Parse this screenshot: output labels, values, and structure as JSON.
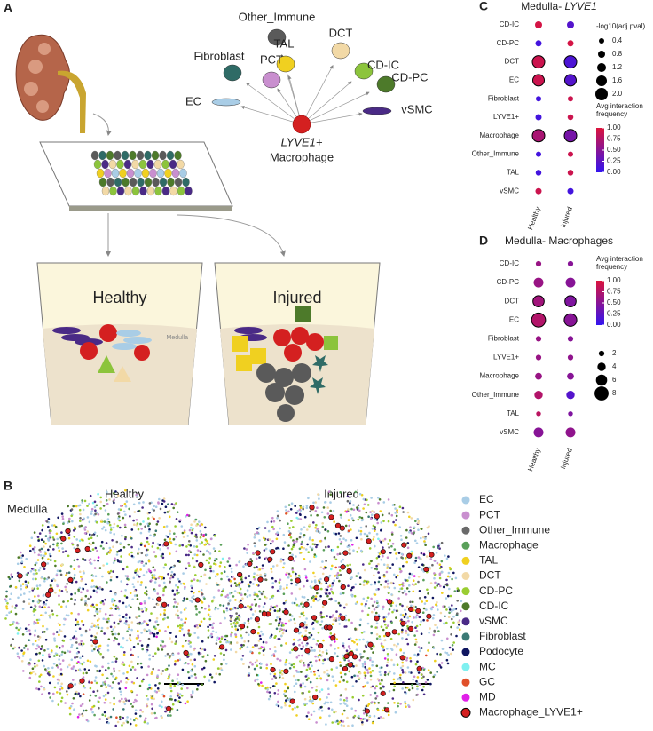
{
  "panel_labels": [
    "A",
    "B",
    "C",
    "D"
  ],
  "diagram": {
    "cells": [
      {
        "name": "Other_Immune",
        "color": "#5a5a5a"
      },
      {
        "name": "TAL",
        "color": "#f0d020"
      },
      {
        "name": "DCT",
        "color": "#f2d9a6"
      },
      {
        "name": "Fibroblast",
        "color": "#2f6b66"
      },
      {
        "name": "PCT",
        "color": "#c98fcf"
      },
      {
        "name": "CD-IC",
        "color": "#8cc43c"
      },
      {
        "name": "CD-PC",
        "color": "#4d7a2a"
      },
      {
        "name": "EC",
        "color": "#a9cde6"
      },
      {
        "name": "vSMC",
        "color": "#4a2a86"
      }
    ],
    "center_label": [
      "LYVE1+",
      "Macrophage"
    ],
    "conditions": [
      "Healthy",
      "Injured"
    ],
    "region": "Medulla"
  },
  "spatial": {
    "region": "Medulla",
    "titles": [
      "Healthy",
      "Injured"
    ],
    "legend": [
      {
        "name": "EC",
        "color": "#a9cde6"
      },
      {
        "name": "PCT",
        "color": "#c98fcf"
      },
      {
        "name": "Other_Immune",
        "color": "#6a6a6a"
      },
      {
        "name": "Macrophage",
        "color": "#5aa05a"
      },
      {
        "name": "TAL",
        "color": "#f0d020"
      },
      {
        "name": "DCT",
        "color": "#f2d9a6"
      },
      {
        "name": "CD-PC",
        "color": "#9acd32"
      },
      {
        "name": "CD-IC",
        "color": "#4d7a2a"
      },
      {
        "name": "vSMC",
        "color": "#4a2a86"
      },
      {
        "name": "Fibroblast",
        "color": "#3b7a76"
      },
      {
        "name": "Podocyte",
        "color": "#0f1660"
      },
      {
        "name": "MC",
        "color": "#7ff0f0"
      },
      {
        "name": "GC",
        "color": "#e0502a"
      },
      {
        "name": "MD",
        "color": "#e020e8"
      },
      {
        "name": "Macrophage_LYVE1+",
        "color": "#d42020"
      }
    ]
  },
  "chart_data": [
    {
      "type": "dot",
      "title": [
        "Medulla- ",
        "LYVE1"
      ],
      "categories": [
        "CD-IC",
        "CD-PC",
        "DCT",
        "EC",
        "Fibroblast",
        "LYVE1+",
        "Macrophage",
        "Other_Immune",
        "TAL",
        "vSMC"
      ],
      "series": [
        {
          "name": "Healthy",
          "values": [
            0.95,
            0.1,
            0.9,
            0.9,
            0.1,
            0.1,
            0.7,
            0.1,
            0.1,
            0.9
          ],
          "sizes": [
            0.8,
            0.6,
            2.0,
            1.8,
            0.4,
            0.6,
            2.0,
            0.4,
            0.5,
            0.6
          ]
        },
        {
          "name": "Injured",
          "values": [
            0.2,
            0.95,
            0.15,
            0.2,
            0.9,
            0.9,
            0.4,
            0.9,
            0.9,
            0.1
          ],
          "sizes": [
            0.8,
            0.6,
            2.0,
            1.8,
            0.4,
            0.5,
            2.0,
            0.4,
            0.5,
            0.6
          ]
        }
      ],
      "size_legend": {
        "title": "-log10(adj pval)",
        "ticks": [
          0.4,
          0.8,
          1.2,
          1.6,
          {
            "value": 2,
            "label": "2.0"
          }
        ]
      },
      "color_legend": {
        "title": [
          "Avg interaction",
          "frequency"
        ],
        "clim": [
          0,
          1
        ],
        "ticks": [
          {
            "value": 1,
            "label": "1.00"
          },
          {
            "value": 0.75,
            "label": "0.75"
          },
          {
            "value": 0.5,
            "label": "0.50"
          },
          {
            "value": 0.25,
            "label": "0.25"
          },
          {
            "value": 0,
            "label": "0.00"
          }
        ]
      }
    },
    {
      "type": "dot",
      "title": [
        "Medulla- Macrophages"
      ],
      "categories": [
        "CD-IC",
        "CD-PC",
        "DCT",
        "EC",
        "Fibroblast",
        "LYVE1+",
        "Macrophage",
        "Other_Immune",
        "TAL",
        "vSMC"
      ],
      "series": [
        {
          "name": "Healthy",
          "values": [
            0.6,
            0.6,
            0.65,
            0.75,
            0.6,
            0.6,
            0.6,
            0.75,
            0.8,
            0.5
          ],
          "sizes": [
            2,
            5,
            6,
            8,
            2,
            2,
            3,
            4,
            1.5,
            5
          ]
        },
        {
          "name": "Injured",
          "values": [
            0.5,
            0.5,
            0.45,
            0.5,
            0.5,
            0.55,
            0.5,
            0.2,
            0.45,
            0.55
          ],
          "sizes": [
            2,
            5,
            6,
            7,
            2,
            2,
            3,
            4,
            1.5,
            5
          ]
        }
      ],
      "size_legend": {
        "ticks": [
          2,
          4,
          6,
          8
        ]
      },
      "color_legend": {
        "title": [
          "Avg interaction",
          "frequency"
        ],
        "clim": [
          0,
          1
        ],
        "ticks": [
          {
            "value": 1,
            "label": "1.00"
          },
          {
            "value": 0.75,
            "label": "0.75"
          },
          {
            "value": 0.5,
            "label": "0.50"
          },
          {
            "value": 0.25,
            "label": "0.25"
          },
          {
            "value": 0,
            "label": "0.00"
          }
        ]
      }
    }
  ]
}
